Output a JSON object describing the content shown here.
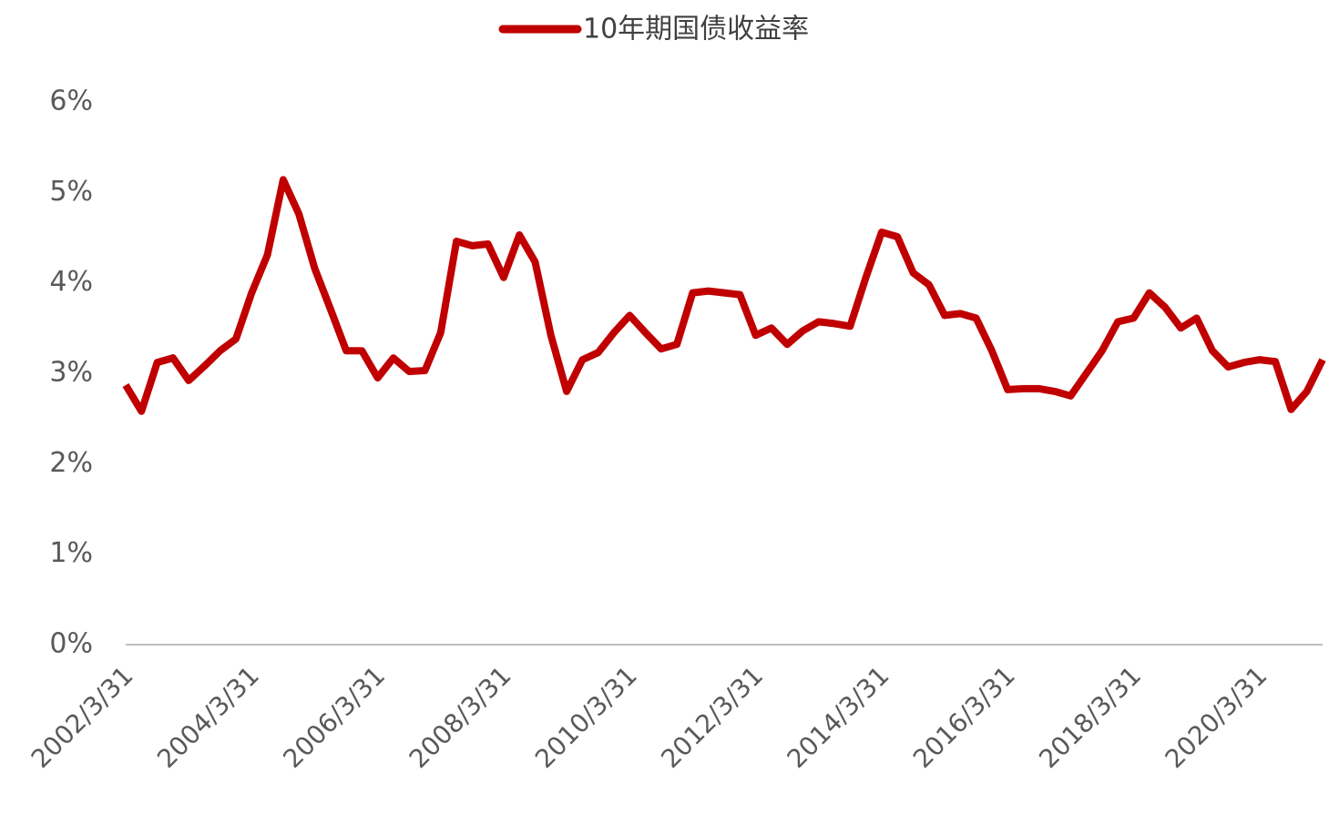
{
  "chart_data": {
    "type": "line",
    "categories": [
      "2002/3/31",
      null,
      null,
      null,
      null,
      null,
      null,
      null,
      "2004/3/31",
      null,
      null,
      null,
      null,
      null,
      null,
      null,
      "2006/3/31",
      null,
      null,
      null,
      null,
      null,
      null,
      null,
      "2008/3/31",
      null,
      null,
      null,
      null,
      null,
      null,
      null,
      "2010/3/31",
      null,
      null,
      null,
      null,
      null,
      null,
      null,
      "2012/3/31",
      null,
      null,
      null,
      null,
      null,
      null,
      null,
      "2014/3/31",
      null,
      null,
      null,
      null,
      null,
      null,
      null,
      "2016/3/31",
      null,
      null,
      null,
      null,
      null,
      null,
      null,
      "2018/3/31",
      null,
      null,
      null,
      null,
      null,
      null,
      null,
      "2020/3/31",
      null,
      null,
      null,
      null
    ],
    "series": [
      {
        "name": "10年期国债收益率",
        "color": "#c00000",
        "values": [
          2.87,
          2.58,
          3.12,
          3.17,
          2.92,
          3.08,
          3.25,
          3.38,
          3.89,
          4.31,
          5.14,
          4.76,
          4.16,
          3.71,
          3.25,
          3.25,
          2.95,
          3.17,
          3.02,
          3.03,
          3.45,
          4.46,
          4.41,
          4.43,
          4.06,
          4.53,
          4.23,
          3.42,
          2.8,
          3.15,
          3.23,
          3.45,
          3.64,
          3.45,
          3.27,
          3.32,
          3.89,
          3.91,
          3.89,
          3.87,
          3.42,
          3.5,
          3.32,
          3.47,
          3.57,
          3.55,
          3.52,
          4.06,
          4.56,
          4.51,
          4.11,
          3.98,
          3.64,
          3.66,
          3.61,
          3.25,
          2.82,
          2.83,
          2.83,
          2.8,
          2.75,
          3.0,
          3.25,
          3.57,
          3.61,
          3.89,
          3.73,
          3.5,
          3.61,
          3.25,
          3.07,
          3.12,
          3.15,
          3.13,
          2.6,
          2.8,
          3.15
        ]
      }
    ],
    "ylim": [
      0,
      6
    ],
    "yticks": [
      {
        "value": 0,
        "label": "0%"
      },
      {
        "value": 1,
        "label": "1%"
      },
      {
        "value": 2,
        "label": "2%"
      },
      {
        "value": 3,
        "label": "3%"
      },
      {
        "value": 4,
        "label": "4%"
      },
      {
        "value": 5,
        "label": "5%"
      },
      {
        "value": 6,
        "label": "6%"
      }
    ],
    "grid": false
  }
}
